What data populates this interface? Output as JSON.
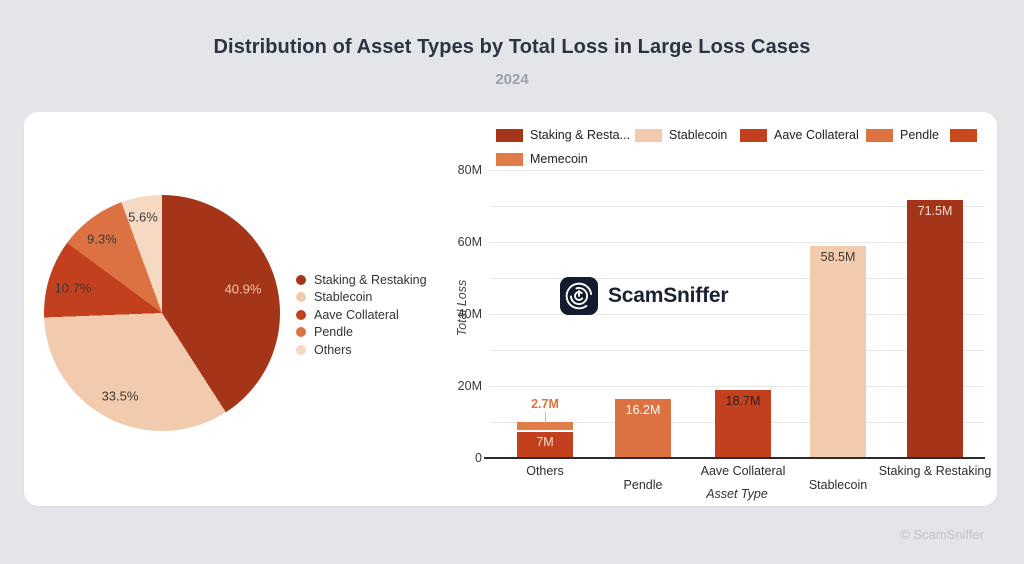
{
  "page": {
    "title": "Distribution of Asset Types by Total Loss in Large Loss Cases",
    "subtitle": "2024",
    "footer": "© ScamSniffer"
  },
  "watermark": {
    "text": "ScamSniffer",
    "icon_bg": "#131b2e"
  },
  "chart_data": [
    {
      "type": "pie",
      "labels": [
        "Staking & Restaking",
        "Stablecoin",
        "Aave Collateral",
        "Pendle",
        "Others"
      ],
      "values": [
        40.9,
        33.5,
        10.7,
        9.3,
        5.6
      ],
      "display_labels": [
        "40.9%",
        "33.5%",
        "10.7%",
        "9.3%",
        "5.6%"
      ],
      "colors": [
        "#a43518",
        "#f2cbae",
        "#c2401d",
        "#dc7241",
        "#f6d9c2"
      ],
      "label_colors": [
        "#f0c7a9",
        "#3b3b3b",
        "#3b3b3b",
        "#3b3b3b",
        "#3b3b3b"
      ],
      "legend_position": "right",
      "start_angle": "top, clockwise"
    },
    {
      "type": "bar",
      "xlabel": "Asset Type",
      "ylabel": "Total Loss",
      "ylim": [
        0,
        80
      ],
      "yticks": [
        "0",
        "20M",
        "40M",
        "60M",
        "80M"
      ],
      "grid": "horizontal every 10M",
      "categories": [
        "Others",
        "Pendle",
        "Aave Collateral",
        "Stablecoin",
        "Staking & Restaking"
      ],
      "legend": [
        {
          "label": "Staking & Resta...",
          "color": "#a43518"
        },
        {
          "label": "Stablecoin",
          "color": "#f2cbae"
        },
        {
          "label": "Aave Collateral",
          "color": "#c2401d"
        },
        {
          "label": "Pendle",
          "color": "#dc7241"
        },
        {
          "label": "",
          "color": "#c84a1e"
        },
        {
          "label": "Memecoin",
          "color": "#df7c4a"
        }
      ],
      "bars": [
        {
          "category": "Others",
          "segments": [
            {
              "name": "Others",
              "value": 7,
              "label": "7M",
              "color": "#c2401d",
              "label_color": "#f7ddcb"
            },
            {
              "name": "Memecoin",
              "value": 2.7,
              "label": "2.7M",
              "color": "#df7c4a",
              "label_color": "#e0713c",
              "label_position": "outside"
            }
          ]
        },
        {
          "category": "Pendle",
          "segments": [
            {
              "name": "Pendle",
              "value": 16.2,
              "label": "16.2M",
              "color": "#dc7241",
              "label_color": "#ffffff"
            }
          ]
        },
        {
          "category": "Aave Collateral",
          "segments": [
            {
              "name": "Aave Collateral",
              "value": 18.7,
              "label": "18.7M",
              "color": "#c2401d",
              "label_color": "#2e201b"
            }
          ]
        },
        {
          "category": "Stablecoin",
          "segments": [
            {
              "name": "Stablecoin",
              "value": 58.5,
              "label": "58.5M",
              "color": "#f2cbae",
              "label_color": "#41392f"
            }
          ]
        },
        {
          "category": "Staking & Restaking",
          "segments": [
            {
              "name": "Staking & Restaking",
              "value": 71.5,
              "label": "71.5M",
              "color": "#a43518",
              "label_color": "#f4ded0"
            }
          ]
        }
      ]
    }
  ]
}
